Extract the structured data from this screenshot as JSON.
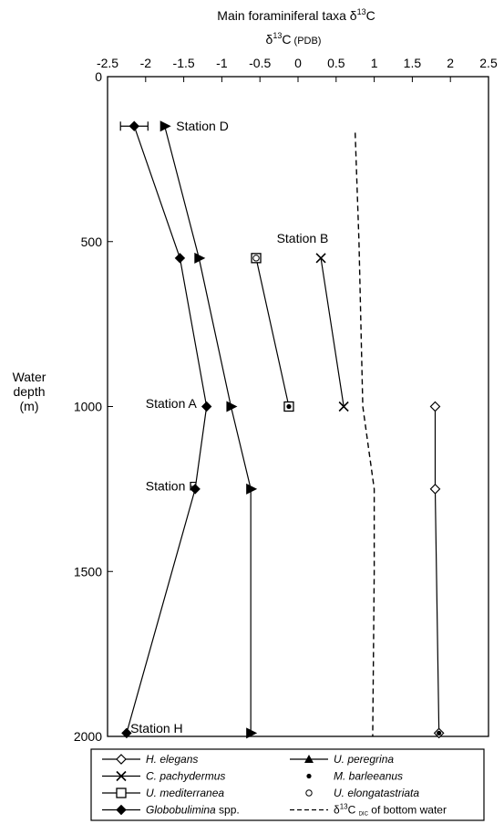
{
  "chart_data": {
    "type": "scatter",
    "title": "Main foraminiferal taxa δ",
    "title_sup": "13",
    "title_tail": "C",
    "subtitle": "δ",
    "subtitle_sup": "13",
    "subtitle_tail": "C",
    "subtitle_small": "(PDB)",
    "ylabel": [
      "Water",
      "depth",
      "(m)"
    ],
    "xlim": [
      -2.5,
      2.5
    ],
    "ylim": [
      0,
      2000
    ],
    "y_inverted": true,
    "x_axis_position": "top",
    "x_ticks": [
      -2.5,
      -2,
      -1.5,
      -1,
      -0.5,
      0,
      0.5,
      1,
      1.5,
      2,
      2.5
    ],
    "x_tick_labels": [
      "-2.5",
      "-2",
      "-1.5",
      "-1",
      "-0.5",
      "0",
      "0.5",
      "1",
      "1.5",
      "2",
      "2.5"
    ],
    "y_ticks": [
      0,
      500,
      1000,
      1500,
      2000
    ],
    "y_tick_labels": [
      "0",
      "500",
      "1000",
      "1500",
      "2000"
    ],
    "grid": false,
    "series": [
      {
        "key": "h_elegans",
        "marker": "diamond-open",
        "line": "solid",
        "points": [
          [
            1.8,
            1000
          ],
          [
            1.8,
            1250
          ],
          [
            1.85,
            1990
          ]
        ]
      },
      {
        "key": "c_pachydermus",
        "marker": "x",
        "line": "solid",
        "points": [
          [
            0.3,
            550
          ],
          [
            0.6,
            1000
          ]
        ]
      },
      {
        "key": "u_mediterranea",
        "marker": "square-open",
        "line": "solid",
        "points": [
          [
            -0.55,
            550
          ],
          [
            -0.12,
            1000
          ]
        ]
      },
      {
        "key": "globobulimina",
        "marker": "diamond-filled",
        "line": "solid",
        "points": [
          [
            -2.15,
            150
          ],
          [
            -1.55,
            550
          ],
          [
            -1.2,
            1000
          ],
          [
            -1.35,
            1250
          ],
          [
            -2.25,
            1990
          ]
        ]
      },
      {
        "key": "u_peregrina",
        "marker": "triangle-right",
        "line": "solid",
        "points": [
          [
            -1.75,
            150
          ],
          [
            -1.3,
            550
          ],
          [
            -0.88,
            1000
          ],
          [
            -0.62,
            1250
          ],
          [
            -0.62,
            1990
          ]
        ]
      },
      {
        "key": "m_barleeanus",
        "marker": "circle-filled",
        "line": "none",
        "points": [
          [
            1.85,
            1990
          ],
          [
            -0.12,
            1000
          ]
        ]
      },
      {
        "key": "u_elongatastriata",
        "marker": "circle-open",
        "line": "none",
        "points": [
          [
            -1.55,
            550
          ],
          [
            -0.55,
            550
          ]
        ]
      },
      {
        "key": "d13c_bottom_water",
        "marker": "none",
        "line": "dashed",
        "points": [
          [
            0.75,
            170
          ],
          [
            0.8,
            500
          ],
          [
            0.85,
            1000
          ],
          [
            1.0,
            1250
          ],
          [
            1.0,
            1500
          ],
          [
            0.98,
            2000
          ]
        ]
      }
    ],
    "error_bars": [
      {
        "series": "globobulimina",
        "x": -2.15,
        "y": 150,
        "xerr": 0.18
      }
    ],
    "station_labels": [
      {
        "text": "Station D",
        "x": -1.6,
        "y": 150
      },
      {
        "text": "Station B",
        "x": -0.28,
        "y": 490
      },
      {
        "text": "Station A",
        "x": -2.0,
        "y": 990
      },
      {
        "text": "Station F",
        "x": -2.0,
        "y": 1240
      },
      {
        "text": "Station H",
        "x": -2.2,
        "y": 1975
      }
    ],
    "legend": {
      "position": "bottom",
      "left": [
        {
          "marker": "diamond-open",
          "label": "H. elegans",
          "italic": true
        },
        {
          "marker": "x",
          "label": "C. pachydermus",
          "italic": true
        },
        {
          "marker": "square-open",
          "label": "U. mediterranea",
          "italic": true
        },
        {
          "marker": "diamond-filled",
          "label": "Globobulimina",
          "label_tail": " spp.",
          "italic": true
        }
      ],
      "right": [
        {
          "marker": "triangle-up",
          "label": "U. peregrina",
          "italic": true
        },
        {
          "marker": "circle-filled",
          "label": "M. barleeanus",
          "italic": true
        },
        {
          "marker": "circle-open",
          "label": "U. elongatastriata",
          "italic": true
        },
        {
          "marker": "dashed",
          "label": "δ",
          "sup": "13",
          "label_mid": "C ",
          "sub": "DIC",
          "label_tail": " of bottom water",
          "italic": false
        }
      ]
    }
  }
}
